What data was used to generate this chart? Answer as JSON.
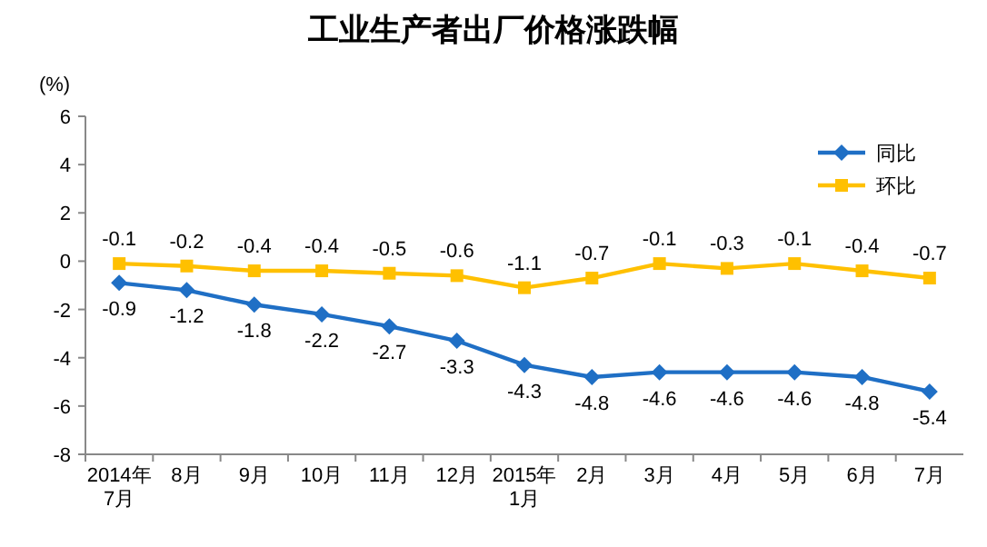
{
  "chart_data": {
    "type": "line",
    "title": "工业生产者出厂价格涨跌幅",
    "ylabel": "(%)",
    "categories": [
      "2014年\n7月",
      "8月",
      "9月",
      "10月",
      "11月",
      "12月",
      "2015年\n1月",
      "2月",
      "3月",
      "4月",
      "5月",
      "6月",
      "7月"
    ],
    "series": [
      {
        "name": "同比",
        "color": "#1f6fc5",
        "marker": "diamond",
        "values": [
          -0.9,
          -1.2,
          -1.8,
          -2.2,
          -2.7,
          -3.3,
          -4.3,
          -4.8,
          -4.6,
          -4.6,
          -4.6,
          -4.8,
          -5.4
        ]
      },
      {
        "name": "环比",
        "color": "#ffc000",
        "marker": "square",
        "values": [
          -0.1,
          -0.2,
          -0.4,
          -0.4,
          -0.5,
          -0.6,
          -1.1,
          -0.7,
          -0.1,
          -0.3,
          -0.1,
          -0.4,
          -0.7
        ]
      }
    ],
    "ylim": [
      -8,
      6
    ],
    "yticks": [
      -8,
      -6,
      -4,
      -2,
      0,
      2,
      4,
      6
    ],
    "data_labels": true,
    "legend": "top right",
    "grid": false
  }
}
